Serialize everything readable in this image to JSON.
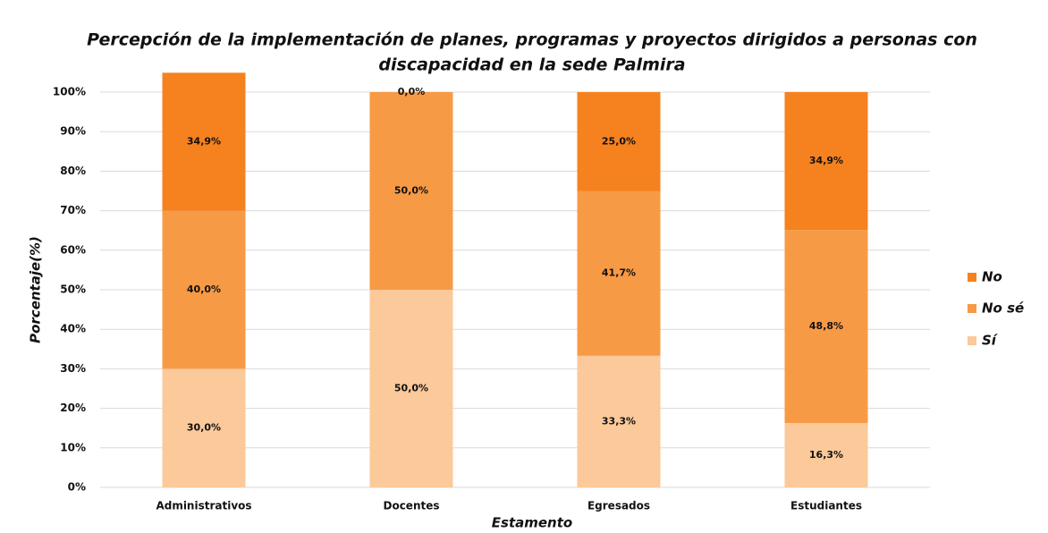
{
  "chart_data": {
    "type": "stacked_bar",
    "title": [
      "Percepción de la implementación de planes, programas y proyectos dirigidos a personas con",
      "discapacidad en la sede Palmira"
    ],
    "x_label": "Estamento",
    "y_label": "Porcentaje(%)",
    "categories": [
      "Administrativos",
      "Docentes",
      "Egresados",
      "Estudiantes"
    ],
    "series": [
      {
        "name": "Sí",
        "color": "#fbc99a",
        "values": [
          30.0,
          50.0,
          33.3,
          16.3
        ],
        "value_labels": [
          "30,0%",
          "50,0%",
          "33,3%",
          "16,3%"
        ]
      },
      {
        "name": "No sé",
        "color": "#f79a45",
        "values": [
          40.0,
          50.0,
          41.7,
          48.8
        ],
        "value_labels": [
          "40,0%",
          "50,0%",
          "41,7%",
          "48,8%"
        ]
      },
      {
        "name": "No",
        "color": "#f5821f",
        "values": [
          34.9,
          0.0,
          25.0,
          34.9
        ],
        "value_labels": [
          "34,9%",
          "0,0%",
          "25,0%",
          "34,9%"
        ]
      }
    ],
    "ylim": [
      0,
      100
    ],
    "yticks": [
      {
        "value": 0,
        "label": "0%"
      },
      {
        "value": 10,
        "label": "10%"
      },
      {
        "value": 20,
        "label": "20%"
      },
      {
        "value": 30,
        "label": "30%"
      },
      {
        "value": 40,
        "label": "40%"
      },
      {
        "value": 50,
        "label": "50%"
      },
      {
        "value": 60,
        "label": "60%"
      },
      {
        "value": 70,
        "label": "70%"
      },
      {
        "value": 80,
        "label": "80%"
      },
      {
        "value": 90,
        "label": "90%"
      },
      {
        "value": 100,
        "label": "100%"
      }
    ],
    "grid": true,
    "legend": "right"
  }
}
